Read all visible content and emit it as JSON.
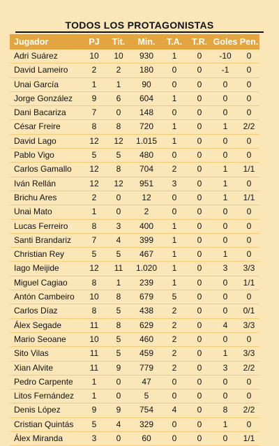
{
  "title": "TODOS LOS PROTAGONISTAS",
  "colors": {
    "background": "#fbe6b8",
    "header": "#e3a540",
    "row_rule": "#f4c978"
  },
  "columns": [
    "Jugador",
    "PJ",
    "Tit.",
    "Min.",
    "T.A.",
    "T.R.",
    "Goles",
    "Pen."
  ],
  "rows": [
    [
      "Adri Suárez",
      "10",
      "10",
      "930",
      "1",
      "0",
      "-10",
      "0"
    ],
    [
      "David Lameiro",
      "2",
      "2",
      "180",
      "0",
      "0",
      "-1",
      "0"
    ],
    [
      "Unai García",
      "1",
      "1",
      "90",
      "0",
      "0",
      "0",
      "0"
    ],
    [
      "Jorge González",
      "9",
      "6",
      "604",
      "1",
      "0",
      "0",
      "0"
    ],
    [
      "Dani Bacariza",
      "7",
      "0",
      "148",
      "0",
      "0",
      "0",
      "0"
    ],
    [
      "César Freire",
      "8",
      "8",
      "720",
      "1",
      "0",
      "1",
      "2/2"
    ],
    [
      "David Lago",
      "12",
      "12",
      "1.015",
      "1",
      "0",
      "0",
      "0"
    ],
    [
      "Pablo Vigo",
      "5",
      "5",
      "480",
      "0",
      "0",
      "0",
      "0"
    ],
    [
      "Carlos Gamallo",
      "12",
      "8",
      "704",
      "2",
      "0",
      "1",
      "1/1"
    ],
    [
      "Iván Rellán",
      "12",
      "12",
      "951",
      "3",
      "0",
      "1",
      "0"
    ],
    [
      "Brichu Ares",
      "2",
      "0",
      "12",
      "0",
      "0",
      "1",
      "1/1"
    ],
    [
      "Unai Mato",
      "1",
      "0",
      "2",
      "0",
      "0",
      "0",
      "0"
    ],
    [
      "Lucas Ferreiro",
      "8",
      "3",
      "400",
      "1",
      "0",
      "0",
      "0"
    ],
    [
      "Santi Brandariz",
      "7",
      "4",
      "399",
      "1",
      "0",
      "0",
      "0"
    ],
    [
      "Christian Rey",
      "5",
      "5",
      "467",
      "1",
      "0",
      "1",
      "0"
    ],
    [
      "Iago Meijide",
      "12",
      "11",
      "1.020",
      "1",
      "0",
      "3",
      "3/3"
    ],
    [
      "Miguel Cagiao",
      "8",
      "1",
      "239",
      "1",
      "0",
      "0",
      "1/1"
    ],
    [
      "Antón Cambeiro",
      "10",
      "8",
      "679",
      "5",
      "0",
      "0",
      "0"
    ],
    [
      "Carlos Díaz",
      "8",
      "5",
      "438",
      "2",
      "0",
      "0",
      "0/1"
    ],
    [
      "Álex Segade",
      "11",
      "8",
      "629",
      "2",
      "0",
      "4",
      "3/3"
    ],
    [
      "Mario Seoane",
      "10",
      "5",
      "460",
      "2",
      "0",
      "0",
      "0"
    ],
    [
      "Sito Vilas",
      "11",
      "5",
      "459",
      "2",
      "0",
      "1",
      "3/3"
    ],
    [
      "Xian Alvite",
      "11",
      "9",
      "779",
      "2",
      "0",
      "3",
      "2/2"
    ],
    [
      "Pedro Carpente",
      "1",
      "0",
      "47",
      "0",
      "0",
      "0",
      "0"
    ],
    [
      "Litos Fernández",
      "1",
      "0",
      "5",
      "0",
      "0",
      "0",
      "0"
    ],
    [
      "Denis López",
      "9",
      "9",
      "754",
      "4",
      "0",
      "8",
      "2/2"
    ],
    [
      "Cristian Quintás",
      "5",
      "4",
      "329",
      "0",
      "0",
      "1",
      "0"
    ],
    [
      "Álex Miranda",
      "3",
      "0",
      "60",
      "0",
      "0",
      "0",
      "1/1"
    ]
  ]
}
